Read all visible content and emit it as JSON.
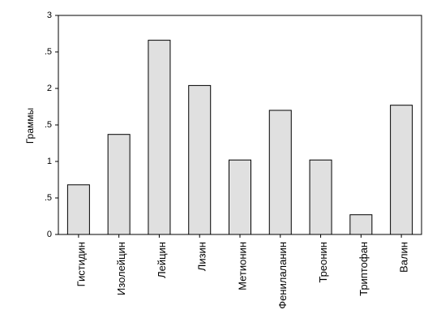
{
  "chart_data": {
    "type": "bar",
    "y_label": "Граммы",
    "categories": [
      "Гистидин",
      "Изолейцин",
      "Лейцин",
      "Лизин",
      "Метионин",
      "Фенилаланин",
      "Треонин",
      "Триптофан",
      "Валин"
    ],
    "values": [
      0.68,
      1.37,
      2.66,
      2.04,
      1.02,
      1.7,
      1.02,
      0.27,
      1.77
    ],
    "color": "#e0e0e0",
    "ylim": [
      0,
      3
    ],
    "yticks": [
      0,
      {
        "value": 0.5,
        "label": ".5"
      },
      1,
      {
        "value": 1.5,
        "label": ".5"
      },
      2,
      {
        "value": 2.5,
        "label": ".5"
      },
      3
    ]
  }
}
